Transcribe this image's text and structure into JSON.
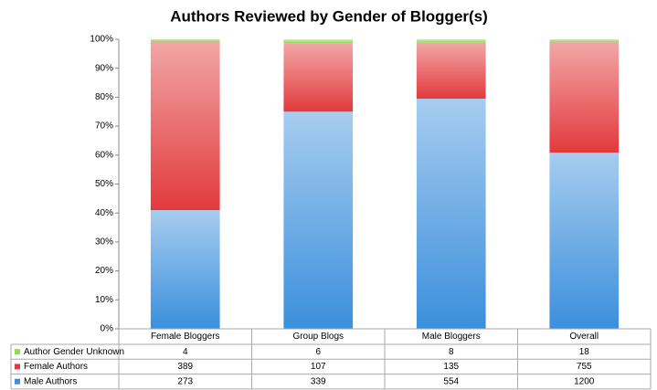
{
  "chart_data": {
    "type": "bar",
    "stacking": "percent",
    "title": "Authors Reviewed by Gender of Blogger(s)",
    "categories": [
      "Female Bloggers",
      "Group Blogs",
      "Male Bloggers",
      "Overall"
    ],
    "series": [
      {
        "name": "Author Gender Unknown",
        "color": "#8fdc4f",
        "values": [
          4,
          6,
          8,
          18
        ]
      },
      {
        "name": "Female Authors",
        "color": "#e23a3c",
        "values": [
          389,
          107,
          135,
          755
        ]
      },
      {
        "name": "Male Authors",
        "color": "#3b8fdc",
        "values": [
          273,
          339,
          554,
          1200
        ]
      }
    ],
    "ylim": [
      0,
      100
    ],
    "yticks": [
      {
        "value": 0,
        "label": "0%"
      },
      {
        "value": 10,
        "label": "10%"
      },
      {
        "value": 20,
        "label": "20%"
      },
      {
        "value": 30,
        "label": "30%"
      },
      {
        "value": 40,
        "label": "40%"
      },
      {
        "value": 50,
        "label": "50%"
      },
      {
        "value": 60,
        "label": "60%"
      },
      {
        "value": 70,
        "label": "70%"
      },
      {
        "value": 80,
        "label": "80%"
      },
      {
        "value": 90,
        "label": "90%"
      },
      {
        "value": 100,
        "label": "100%"
      }
    ],
    "grid": false
  }
}
